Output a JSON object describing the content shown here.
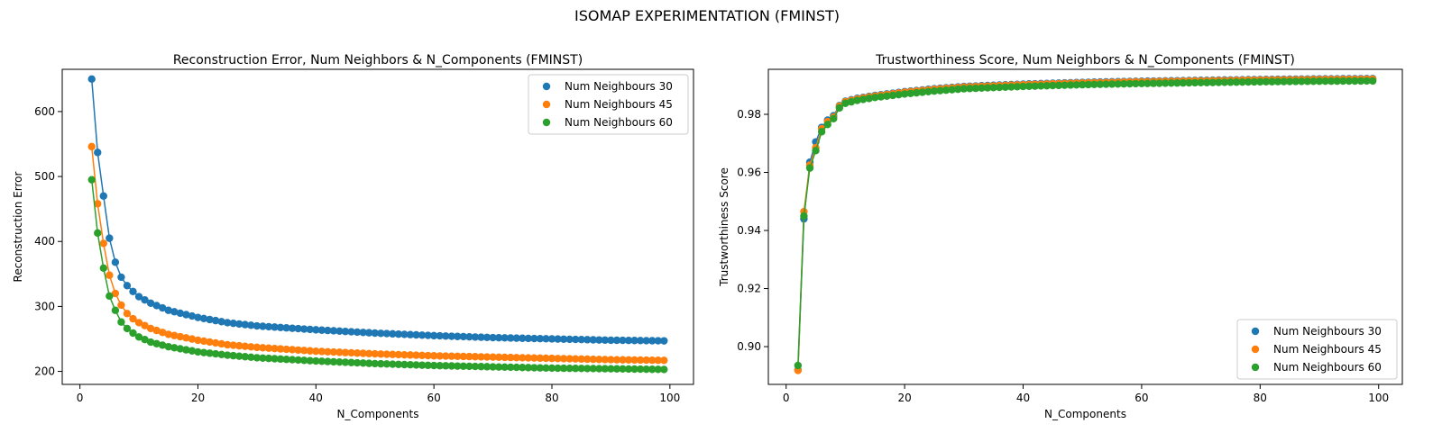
{
  "figure": {
    "suptitle": "ISOMAP EXPERIMENTATION (FMINST)"
  },
  "chart_data": [
    {
      "type": "line",
      "title": "Reconstruction Error, Num Neighbors & N_Components (FMINST)",
      "xlabel": "N_Components",
      "ylabel": "Reconstruction Error",
      "xlim": [
        -3,
        104
      ],
      "ylim": [
        180,
        665
      ],
      "xticks": [
        0,
        20,
        40,
        60,
        80,
        100
      ],
      "yticks": [
        200,
        300,
        400,
        500,
        600
      ],
      "legend": "upper-right",
      "x_range": [
        2,
        99
      ],
      "series": [
        {
          "name": "Num Neighbours 30",
          "color": "#1f77b4",
          "anchors": [
            [
              2,
              650
            ],
            [
              3,
              537
            ],
            [
              4,
              470
            ],
            [
              5,
              405
            ],
            [
              6,
              368
            ],
            [
              7,
              345
            ],
            [
              8,
              332
            ],
            [
              9,
              323
            ],
            [
              10,
              315
            ],
            [
              12,
              305
            ],
            [
              15,
              294
            ],
            [
              20,
              283
            ],
            [
              25,
              275
            ],
            [
              30,
              270
            ],
            [
              40,
              264
            ],
            [
              50,
              259
            ],
            [
              60,
              255
            ],
            [
              70,
              252
            ],
            [
              80,
              250
            ],
            [
              90,
              248
            ],
            [
              99,
              247
            ]
          ]
        },
        {
          "name": "Num Neighbours 45",
          "color": "#ff7f0e",
          "anchors": [
            [
              2,
              546
            ],
            [
              3,
              458
            ],
            [
              4,
              397
            ],
            [
              5,
              348
            ],
            [
              6,
              320
            ],
            [
              7,
              302
            ],
            [
              8,
              289
            ],
            [
              9,
              281
            ],
            [
              10,
              275
            ],
            [
              12,
              266
            ],
            [
              15,
              257
            ],
            [
              20,
              248
            ],
            [
              25,
              241
            ],
            [
              30,
              237
            ],
            [
              40,
              231
            ],
            [
              50,
              227
            ],
            [
              60,
              224
            ],
            [
              70,
              222
            ],
            [
              80,
              220
            ],
            [
              90,
              218
            ],
            [
              99,
              217
            ]
          ]
        },
        {
          "name": "Num Neighbours 60",
          "color": "#2ca02c",
          "anchors": [
            [
              2,
              495
            ],
            [
              3,
              413
            ],
            [
              4,
              359
            ],
            [
              5,
              316
            ],
            [
              6,
              294
            ],
            [
              7,
              276
            ],
            [
              8,
              266
            ],
            [
              9,
              259
            ],
            [
              10,
              253
            ],
            [
              12,
              245
            ],
            [
              15,
              238
            ],
            [
              20,
              230
            ],
            [
              25,
              225
            ],
            [
              30,
              221
            ],
            [
              40,
              216
            ],
            [
              50,
              212
            ],
            [
              60,
              209
            ],
            [
              70,
              207
            ],
            [
              80,
              205
            ],
            [
              90,
              204
            ],
            [
              99,
              203
            ]
          ]
        }
      ]
    },
    {
      "type": "line",
      "title": "Trustworthiness Score, Num Neighbors & N_Components (FMINST)",
      "xlabel": "N_Components",
      "ylabel": "Trustworthiness Score",
      "xlim": [
        -3,
        104
      ],
      "ylim": [
        0.887,
        0.9955
      ],
      "xticks": [
        0,
        20,
        40,
        60,
        80,
        100
      ],
      "yticks": [
        0.9,
        0.92,
        0.94,
        0.96,
        0.98
      ],
      "legend": "lower-right",
      "x_range": [
        2,
        99
      ],
      "series": [
        {
          "name": "Num Neighbours 30",
          "color": "#1f77b4",
          "anchors": [
            [
              2,
              0.892
            ],
            [
              3,
              0.944
            ],
            [
              4,
              0.9635
            ],
            [
              5,
              0.9705
            ],
            [
              6,
              0.9755
            ],
            [
              7,
              0.978
            ],
            [
              8,
              0.9795
            ],
            [
              9,
              0.983
            ],
            [
              10,
              0.9845
            ],
            [
              12,
              0.9855
            ],
            [
              15,
              0.9865
            ],
            [
              20,
              0.9878
            ],
            [
              25,
              0.9888
            ],
            [
              30,
              0.9896
            ],
            [
              40,
              0.9904
            ],
            [
              50,
              0.991
            ],
            [
              60,
              0.9914
            ],
            [
              70,
              0.9917
            ],
            [
              80,
              0.992
            ],
            [
              90,
              0.9922
            ],
            [
              99,
              0.9923
            ]
          ]
        },
        {
          "name": "Num Neighbours 45",
          "color": "#ff7f0e",
          "anchors": [
            [
              2,
              0.8918
            ],
            [
              3,
              0.9465
            ],
            [
              4,
              0.9625
            ],
            [
              5,
              0.9685
            ],
            [
              6,
              0.975
            ],
            [
              7,
              0.9775
            ],
            [
              8,
              0.979
            ],
            [
              9,
              0.9828
            ],
            [
              10,
              0.9843
            ],
            [
              12,
              0.9853
            ],
            [
              15,
              0.9863
            ],
            [
              20,
              0.9876
            ],
            [
              25,
              0.9886
            ],
            [
              30,
              0.9894
            ],
            [
              40,
              0.9902
            ],
            [
              50,
              0.9908
            ],
            [
              60,
              0.9912
            ],
            [
              70,
              0.9915
            ],
            [
              80,
              0.9918
            ],
            [
              90,
              0.992
            ],
            [
              99,
              0.9921
            ]
          ]
        },
        {
          "name": "Num Neighbours 60",
          "color": "#2ca02c",
          "anchors": [
            [
              2,
              0.8935
            ],
            [
              3,
              0.945
            ],
            [
              4,
              0.9615
            ],
            [
              5,
              0.9675
            ],
            [
              6,
              0.974
            ],
            [
              7,
              0.9765
            ],
            [
              8,
              0.9785
            ],
            [
              9,
              0.9822
            ],
            [
              10,
              0.9838
            ],
            [
              12,
              0.9848
            ],
            [
              15,
              0.9858
            ],
            [
              20,
              0.987
            ],
            [
              25,
              0.988
            ],
            [
              30,
              0.9888
            ],
            [
              40,
              0.9896
            ],
            [
              50,
              0.9902
            ],
            [
              60,
              0.9906
            ],
            [
              70,
              0.9909
            ],
            [
              80,
              0.9912
            ],
            [
              90,
              0.9914
            ],
            [
              99,
              0.9915
            ]
          ]
        }
      ]
    }
  ]
}
